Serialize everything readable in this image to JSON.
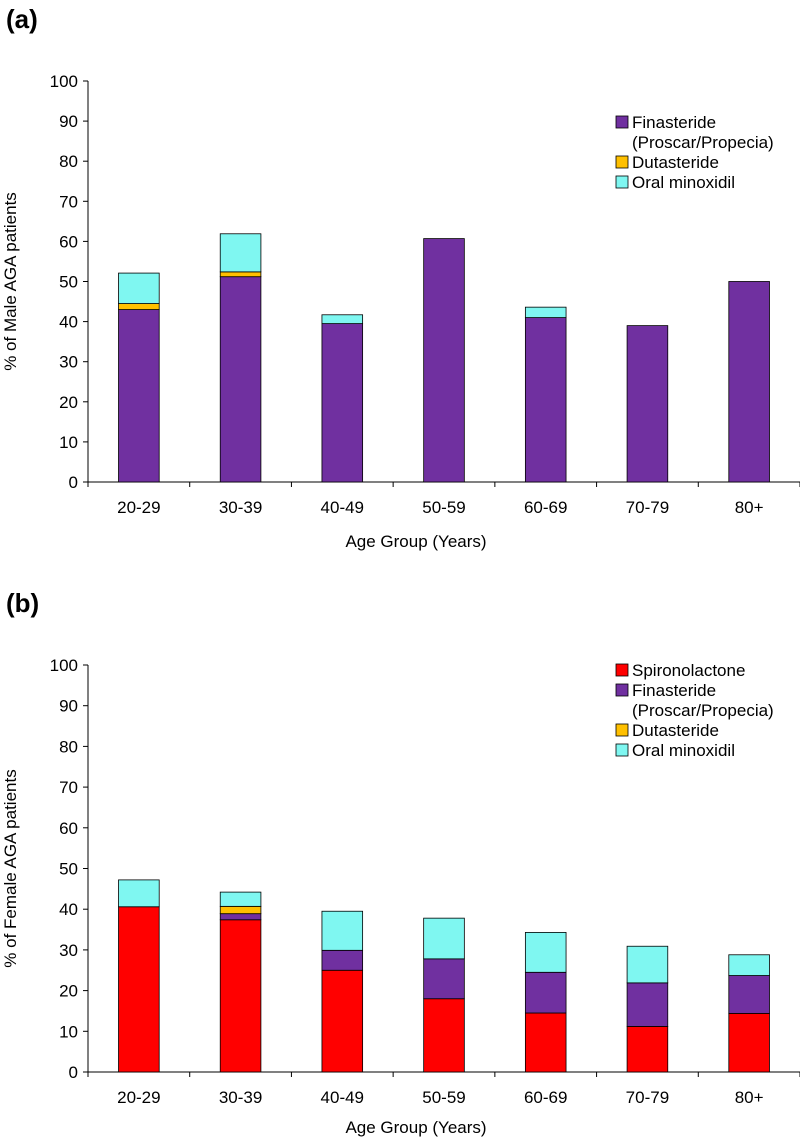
{
  "colors": {
    "Spironolactone": "#ff0000",
    "Finasteride": "#7030a0",
    "Dutasteride": "#ffc000",
    "Oral minoxidil": "#7ff7f1"
  },
  "chart_data": [
    {
      "panel": "(a)",
      "type": "bar",
      "stacked": true,
      "categories": [
        "20-29",
        "30-39",
        "40-49",
        "50-59",
        "60-69",
        "70-79",
        "80+"
      ],
      "series": [
        {
          "name": "Finasteride",
          "legend_lines": [
            "Finasteride",
            "(Proscar/Propecia)"
          ],
          "color_key": "Finasteride",
          "values": [
            43.0,
            51.2,
            39.5,
            60.7,
            41.0,
            39.0,
            50.0
          ]
        },
        {
          "name": "Dutasteride",
          "legend_lines": [
            "Dutasteride"
          ],
          "color_key": "Dutasteride",
          "values": [
            1.5,
            1.2,
            0.0,
            0.0,
            0.0,
            0.0,
            0.0
          ]
        },
        {
          "name": "Oral minoxidil",
          "legend_lines": [
            "Oral minoxidil"
          ],
          "color_key": "Oral minoxidil",
          "values": [
            7.6,
            9.5,
            2.2,
            0.0,
            2.6,
            0.0,
            0.0
          ]
        }
      ],
      "ylim": [
        0,
        100
      ],
      "yticks": [
        "0",
        "10",
        "20",
        "30",
        "40",
        "50",
        "60",
        "70",
        "80",
        "90",
        "100"
      ],
      "xlabel": "Age Group (Years)",
      "ylabel": "% of Male AGA patients",
      "legend_position": "top-right"
    },
    {
      "panel": "(b)",
      "type": "bar",
      "stacked": true,
      "categories": [
        "20-29",
        "30-39",
        "40-49",
        "50-59",
        "60-69",
        "70-79",
        "80+"
      ],
      "series": [
        {
          "name": "Spironolactone",
          "legend_lines": [
            "Spironolactone"
          ],
          "color_key": "Spironolactone",
          "values": [
            40.6,
            37.4,
            25.0,
            18.0,
            14.5,
            11.2,
            14.4
          ]
        },
        {
          "name": "Finasteride",
          "legend_lines": [
            "Finasteride",
            "(Proscar/Propecia)"
          ],
          "color_key": "Finasteride",
          "values": [
            0.0,
            1.5,
            4.9,
            9.8,
            10.0,
            10.7,
            9.3
          ]
        },
        {
          "name": "Dutasteride",
          "legend_lines": [
            "Dutasteride"
          ],
          "color_key": "Dutasteride",
          "values": [
            0.0,
            1.8,
            0.0,
            0.0,
            0.0,
            0.0,
            0.0
          ]
        },
        {
          "name": "Oral minoxidil",
          "legend_lines": [
            "Oral minoxidil"
          ],
          "color_key": "Oral minoxidil",
          "values": [
            6.6,
            3.5,
            9.6,
            10.0,
            9.8,
            9.0,
            5.1
          ]
        }
      ],
      "ylim": [
        0,
        100
      ],
      "yticks": [
        "0",
        "10",
        "20",
        "30",
        "40",
        "50",
        "60",
        "70",
        "80",
        "90",
        "100"
      ],
      "xlabel": "Age Group (Years)",
      "ylabel": "% of Female AGA patients",
      "legend_position": "top-right"
    }
  ]
}
